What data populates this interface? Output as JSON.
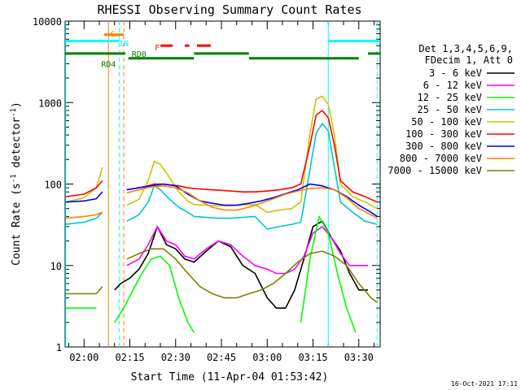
{
  "chart_data": {
    "type": "line",
    "title": "RHESSI Observing Summary Count Rates",
    "xlabel": "Start Time (11-Apr-04 01:53:42)",
    "ylabel": "Count Rate (s⁻¹ detector⁻¹)",
    "ylabel_parts": [
      "Count Rate (s",
      "-1",
      " detector",
      "-1",
      ")"
    ],
    "yscale": "log",
    "ylim": [
      1,
      10000
    ],
    "xlim_minutes": [
      -6.2,
      97.0
    ],
    "x_tick_minutes": [
      0,
      15,
      30,
      45,
      60,
      75,
      90
    ],
    "x_tick_labels": [
      "02:00",
      "02:15",
      "02:30",
      "02:45",
      "03:00",
      "03:15",
      "03:30"
    ],
    "y_ticks": [
      1,
      10,
      100,
      1000,
      10000
    ],
    "y_tick_labels": [
      "1",
      "10",
      "100",
      "1000",
      "10000"
    ],
    "legend_header": [
      "Det 1,3,4,5,6,9,",
      "FDecim 1, Att 0"
    ],
    "legend_position": "right",
    "date_stamp": "16-Oct-2021 17:11",
    "series": [
      {
        "name": "3 - 6 keV",
        "color": "#000000",
        "x": [
          -6,
          5,
          8,
          10,
          12,
          15,
          18,
          21,
          24,
          27,
          30,
          33,
          36,
          40,
          44,
          48,
          52,
          56,
          60,
          63,
          66,
          69,
          72,
          75,
          78,
          81,
          84,
          87,
          90,
          93,
          96
        ],
        "y": [
          null,
          null,
          null,
          5,
          6,
          7,
          9,
          14,
          30,
          18,
          16,
          12,
          11,
          15,
          20,
          17,
          10,
          8,
          4,
          3,
          3,
          5,
          12,
          30,
          35,
          22,
          15,
          8,
          5,
          5,
          null
        ]
      },
      {
        "name": "6 - 12 keV",
        "color": "#ff00ff",
        "x": [
          -6,
          10,
          14,
          18,
          21,
          24,
          27,
          30,
          33,
          36,
          40,
          44,
          48,
          52,
          56,
          60,
          63,
          66,
          69,
          72,
          75,
          78,
          81,
          84,
          87,
          90,
          93,
          96
        ],
        "y": [
          null,
          null,
          10,
          12,
          18,
          30,
          20,
          18,
          13,
          12,
          16,
          20,
          18,
          13,
          10,
          9,
          8,
          8,
          9,
          13,
          25,
          30,
          22,
          14,
          10,
          10,
          10,
          null
        ]
      },
      {
        "name": "12 - 25 keV",
        "color": "#00ff00",
        "x": [
          -6,
          0,
          4,
          6,
          10,
          13,
          16,
          19,
          22,
          25,
          28,
          31,
          34,
          36,
          40,
          44,
          48,
          52,
          56,
          60,
          62,
          65,
          68,
          71,
          74,
          77,
          80,
          83,
          86,
          89,
          92,
          94,
          96
        ],
        "y": [
          3,
          3,
          3,
          null,
          2,
          3,
          5,
          8,
          12,
          13,
          10,
          4,
          2,
          1.5,
          null,
          null,
          null,
          null,
          null,
          null,
          1.5,
          null,
          null,
          2,
          12,
          40,
          25,
          8,
          3,
          1.5,
          null,
          null,
          null
        ]
      },
      {
        "name": "25 - 50 keV",
        "color": "#00c8c8",
        "x": [
          -6,
          0,
          4,
          6,
          10,
          14,
          18,
          21,
          23,
          25,
          28,
          31,
          34,
          36,
          40,
          44,
          48,
          52,
          56,
          60,
          64,
          68,
          71,
          74,
          76,
          78,
          80,
          82,
          84,
          88,
          92,
          96
        ],
        "y": [
          32,
          34,
          38,
          45,
          null,
          35,
          42,
          60,
          95,
          85,
          65,
          52,
          45,
          40,
          39,
          38,
          38,
          39,
          40,
          28,
          30,
          32,
          34,
          150,
          420,
          550,
          450,
          160,
          60,
          45,
          35,
          32
        ]
      },
      {
        "name": "50 - 100 keV",
        "color": "#c8c800",
        "x": [
          -6,
          0,
          4,
          6,
          10,
          14,
          18,
          21,
          23,
          25,
          28,
          31,
          34,
          36,
          40,
          44,
          48,
          52,
          56,
          60,
          64,
          68,
          71,
          74,
          76,
          78,
          80,
          82,
          84,
          88,
          92,
          96
        ],
        "y": [
          60,
          68,
          90,
          160,
          null,
          55,
          65,
          110,
          190,
          175,
          120,
          80,
          62,
          56,
          55,
          54,
          54,
          55,
          56,
          45,
          48,
          50,
          60,
          420,
          1100,
          1200,
          950,
          400,
          100,
          70,
          60,
          50
        ]
      },
      {
        "name": "100 - 300 keV",
        "color": "#ff0000",
        "x": [
          -6,
          0,
          4,
          6,
          10,
          14,
          18,
          21,
          23,
          25,
          28,
          31,
          34,
          36,
          40,
          44,
          48,
          52,
          56,
          60,
          64,
          68,
          71,
          74,
          76,
          78,
          80,
          82,
          84,
          88,
          92,
          96
        ],
        "y": [
          70,
          75,
          90,
          110,
          null,
          85,
          90,
          95,
          100,
          100,
          98,
          95,
          90,
          88,
          86,
          84,
          82,
          80,
          80,
          82,
          85,
          90,
          100,
          300,
          700,
          800,
          650,
          300,
          110,
          80,
          70,
          60
        ]
      },
      {
        "name": "300 - 800 keV",
        "color": "#0000ff",
        "x": [
          -6,
          0,
          4,
          6,
          10,
          14,
          18,
          22,
          26,
          30,
          34,
          38,
          42,
          46,
          50,
          54,
          58,
          62,
          66,
          70,
          74,
          78,
          82,
          86,
          90,
          94,
          96
        ],
        "y": [
          60,
          62,
          66,
          80,
          null,
          85,
          90,
          95,
          100,
          95,
          75,
          62,
          58,
          55,
          55,
          58,
          62,
          68,
          76,
          85,
          100,
          95,
          85,
          70,
          55,
          45,
          40
        ]
      },
      {
        "name": "800 - 7000 keV",
        "color": "#ff8000",
        "x": [
          -6,
          0,
          4,
          6,
          10,
          14,
          18,
          22,
          26,
          30,
          34,
          38,
          42,
          46,
          50,
          54,
          58,
          62,
          66,
          70,
          74,
          78,
          82,
          86,
          90,
          94,
          96
        ],
        "y": [
          38,
          40,
          42,
          45,
          null,
          78,
          85,
          92,
          95,
          90,
          78,
          62,
          52,
          48,
          48,
          52,
          58,
          66,
          75,
          82,
          88,
          90,
          85,
          68,
          50,
          42,
          38
        ]
      },
      {
        "name": "7000 - 15000 keV",
        "color": "#808000",
        "x": [
          -6,
          0,
          4,
          6,
          10,
          14,
          18,
          22,
          26,
          30,
          34,
          38,
          42,
          46,
          50,
          54,
          58,
          62,
          66,
          70,
          74,
          78,
          82,
          86,
          90,
          94,
          96
        ],
        "y": [
          4.5,
          4.5,
          4.5,
          5.5,
          null,
          12,
          14,
          16,
          16,
          12,
          8,
          5.5,
          4.5,
          4,
          4,
          4.5,
          5,
          6,
          8,
          11,
          14,
          15,
          13,
          10,
          6,
          4,
          3.5
        ]
      }
    ],
    "annotations": [
      {
        "label": "S",
        "color": "#ff8000",
        "x_minutes": 9.5,
        "y": 7000
      },
      {
        "label": "IN",
        "color": "#00ffff",
        "x_minutes": 13.0,
        "y": 5400
      },
      {
        "label": "RD0",
        "color": "#008000",
        "x_minutes": 18.0,
        "y": 4000
      },
      {
        "label": "RD4",
        "color": "#008000",
        "x_minutes": 8.0,
        "y": 3000
      },
      {
        "label": "F",
        "color": "#ff0000",
        "x_minutes": 24.0,
        "y": 4800
      }
    ],
    "state_bars": [
      {
        "flag": "SAA",
        "color": "#ff8000",
        "y": 6800,
        "segments": [
          [
            6.5,
            13.0
          ]
        ]
      },
      {
        "flag": "Night",
        "color": "#00ffff",
        "y": 5700,
        "segments": [
          [
            -6.2,
            11.5
          ],
          [
            80.0,
            97.0
          ]
        ]
      },
      {
        "flag": "Flare",
        "color": "#ff0000",
        "y": 5000,
        "segments": [
          [
            25.0,
            29.0
          ],
          [
            33.0,
            34.5
          ],
          [
            37.0,
            41.5
          ]
        ]
      },
      {
        "flag": "Decimation",
        "color": "#008000",
        "y": 4000,
        "segments": [
          [
            -6.2,
            13.5
          ],
          [
            36.0,
            54.0
          ],
          [
            93.0,
            97.0
          ]
        ]
      },
      {
        "flag": "Decimation",
        "color": "#008000",
        "y": 3500,
        "segments": [
          [
            14.5,
            36.0
          ],
          [
            54.0,
            90.0
          ]
        ]
      }
    ],
    "vertical_markers": [
      {
        "kind": "night",
        "color": "#00ffff",
        "style": "solid",
        "x_minutes": [
          -6.0,
          80.0
        ]
      },
      {
        "kind": "night",
        "color": "#00ffff",
        "style": "dashed",
        "x_minutes": [
          11.5,
          96.0
        ]
      },
      {
        "kind": "saa",
        "color": "#ff8000",
        "style": "solid",
        "x_minutes": [
          8.0
        ]
      },
      {
        "kind": "saa",
        "color": "#ff8000",
        "style": "dashed",
        "x_minutes": [
          13.0
        ]
      }
    ]
  }
}
